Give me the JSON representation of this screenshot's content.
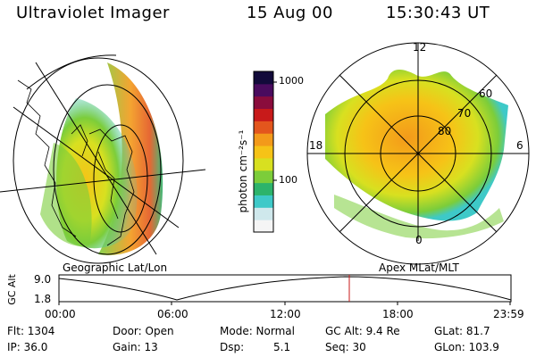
{
  "header": {
    "instrument": "Ultraviolet Imager",
    "date": "15 Aug 00",
    "time": "15:30:43 UT"
  },
  "colorbar": {
    "unit_label": "photon cm⁻²s⁻¹",
    "ticks": [
      "1000",
      "100"
    ],
    "colors": [
      "#f5f5f5",
      "#cfe8ec",
      "#3ec9c8",
      "#2db36b",
      "#7ccd3a",
      "#d8e020",
      "#f6c317",
      "#f39a1a",
      "#e3561d",
      "#c81a1a",
      "#8a0c3c",
      "#4a0b5e",
      "#120a3a"
    ]
  },
  "polar_plot": {
    "mlt_labels": [
      "12",
      "18",
      "6",
      "0"
    ],
    "lat_labels": [
      "60",
      "70",
      "80"
    ]
  },
  "map_labels": {
    "left": "Geographic Lat/Lon",
    "right": "Apex MLat/MLT"
  },
  "gc_alt_plot": {
    "axis_label": "GC Alt",
    "y_ticks": [
      "9.0",
      "1.8"
    ],
    "x_ticks": [
      "00:00",
      "06:00",
      "12:00",
      "18:00",
      "23:59"
    ],
    "marker_time_label": "15:30:43 UT"
  },
  "footer": {
    "flt": "Flt: 1304",
    "ip": "IP: 36.0",
    "door": "Door: Open",
    "gain": "Gain: 13",
    "mode": "Mode: Normal",
    "dsp_label": "Dsp:",
    "dsp_value": "5.1",
    "gc_alt": "GC Alt: 9.4 Re",
    "seq": "Seq: 30",
    "glat": "GLat: 81.7",
    "glon": "GLon: 103.9"
  }
}
